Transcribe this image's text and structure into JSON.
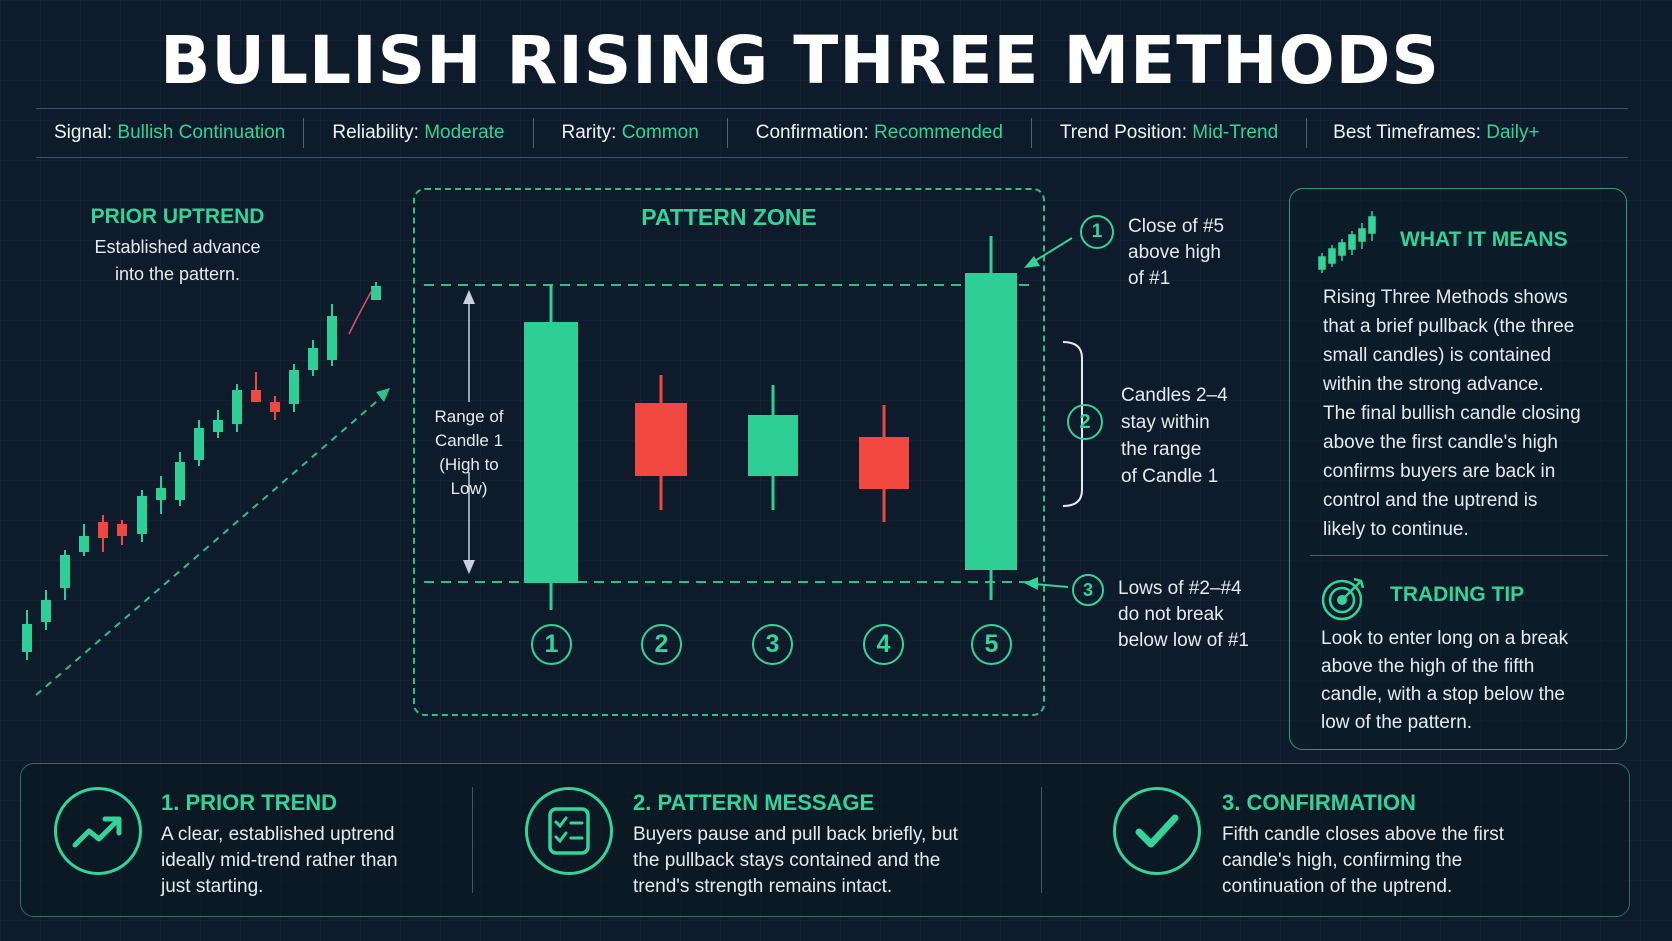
{
  "title": "BULLISH RISING THREE METHODS",
  "info_bar": [
    {
      "label": "Signal:",
      "value": "Bullish Continuation"
    },
    {
      "label": "Reliability:",
      "value": "Moderate"
    },
    {
      "label": "Rarity:",
      "value": "Common"
    },
    {
      "label": "Confirmation:",
      "value": "Recommended"
    },
    {
      "label": "Trend Position:",
      "value": "Mid-Trend"
    },
    {
      "label": "Best Timeframes:",
      "value": "Daily+"
    }
  ],
  "prior_uptrend": {
    "heading": "PRIOR UPTREND",
    "line1": "Established advance",
    "line2": "into the pattern."
  },
  "pattern_zone": {
    "heading": "PATTERN ZONE",
    "range_label": [
      "Range of",
      "Candle 1",
      "(High to Low)"
    ],
    "candle_numbers": [
      "1",
      "2",
      "3",
      "4",
      "5"
    ]
  },
  "annotations": [
    {
      "num": "1",
      "lines": [
        "Close of #5",
        "above high",
        "of #1"
      ]
    },
    {
      "num": "2",
      "lines": [
        "Candles 2–4",
        "stay within",
        "the range",
        "of Candle 1"
      ]
    },
    {
      "num": "3",
      "lines": [
        "Lows of #2–#4",
        "do not break",
        "below low of #1"
      ]
    }
  ],
  "what_it_means": {
    "heading": "WHAT IT MEANS",
    "lines": [
      "Rising Three Methods shows",
      "that a brief pullback (the three",
      "small candles) is contained",
      "within the strong advance.",
      "The final bullish candle closing",
      "above the first candle's high",
      "confirms buyers are back in",
      "control and the uptrend is",
      "likely to continue."
    ]
  },
  "trading_tip": {
    "heading": "TRADING TIP",
    "lines": [
      "Look to enter long on a break",
      "above the high of the fifth",
      "candle, with a stop below the",
      "low of the pattern."
    ]
  },
  "cards": [
    {
      "title": "1. PRIOR TREND",
      "lines": [
        "A clear, established uptrend",
        "ideally mid-trend rather than",
        "just starting."
      ]
    },
    {
      "title": "2. PATTERN MESSAGE",
      "lines": [
        "Buyers pause and pull back briefly, but",
        "the pullback stays contained and the",
        "trend's strength remains intact."
      ]
    },
    {
      "title": "3. CONFIRMATION",
      "lines": [
        "Fifth candle closes above the first",
        "candle's high, confirming the",
        "continuation of the uptrend."
      ]
    }
  ],
  "colors": {
    "bull": "#2ecf95",
    "bear": "#f0483e",
    "accent": "#34d399",
    "background": "#0d1b2a"
  }
}
